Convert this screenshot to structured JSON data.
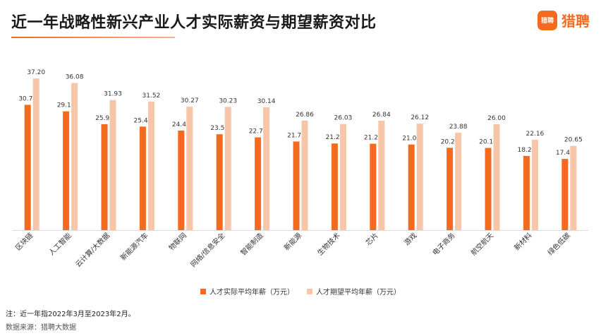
{
  "header": {
    "title": "近一年战略性新兴产业人才实际薪资与期望薪资对比",
    "logo_mark": "猎聘",
    "logo_text": "猎聘"
  },
  "colors": {
    "actual": "#f46b1f",
    "expected": "#f7c6a8",
    "accent": "#f46b1f"
  },
  "chart_data": {
    "type": "bar",
    "title": "近一年战略性新兴产业人才实际薪资与期望薪资对比",
    "categories": [
      "区块链",
      "人工智能",
      "云计算/大数据",
      "新能源汽车",
      "物联网",
      "网络/信息安全",
      "智能制造",
      "新能源",
      "生物技术",
      "芯片",
      "游戏",
      "电子商务",
      "航空航天",
      "新材料",
      "绿色低碳"
    ],
    "series": [
      {
        "name": "人才实际平均年薪（万元）",
        "values": [
          30.74,
          29.14,
          25.99,
          25.4,
          24.43,
          23.52,
          22.76,
          21.74,
          21.26,
          21.2,
          21.0,
          20.2,
          20.17,
          18.2,
          17.48
        ]
      },
      {
        "name": "人才期望平均年薪（万元）",
        "values": [
          37.2,
          36.08,
          31.93,
          31.52,
          30.27,
          30.23,
          30.14,
          26.86,
          26.03,
          26.84,
          26.12,
          23.88,
          26.0,
          22.16,
          20.65
        ]
      }
    ],
    "xlabel": "",
    "ylabel": "",
    "ylim": [
      0,
      40
    ],
    "grid": false,
    "legend_position": "bottom"
  },
  "footer": {
    "note": "注：近一年指2022年3月至2023年2月。",
    "source": "数据来源：猎聘大数据"
  }
}
